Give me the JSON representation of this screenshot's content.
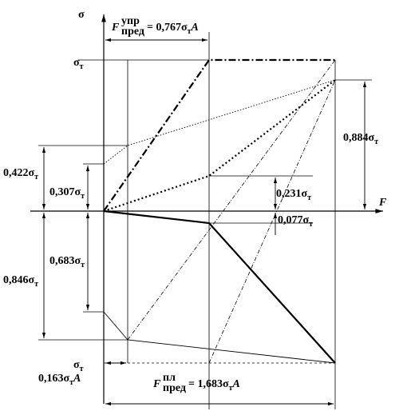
{
  "labels": {
    "sigma_axis": "σ",
    "f_axis": "F",
    "sigma_t_top": {
      "text": "σ",
      "sub": "т"
    },
    "sigma_t_bottom": {
      "text": "σ",
      "sub": "т"
    },
    "f_elastic": {
      "main": "F",
      "sup": "упр",
      "sub": "пред",
      "text": "= 0,767σ",
      "sub2": "т",
      "end": "A"
    },
    "f_plastic": {
      "main": "F",
      "sup": "пл",
      "sub": "пред",
      "text": "= 1,683σ",
      "sub2": "т",
      "end": "A"
    },
    "d_0884": {
      "text": "0,884σ",
      "sub": "т"
    },
    "d_0422": {
      "text": "0,422σ",
      "sub": "т"
    },
    "d_0307": {
      "text": "0,307σ",
      "sub": "т"
    },
    "d_0231": {
      "text": "0,231σ",
      "sub": "т"
    },
    "d_0077": {
      "text": "0,077σ",
      "sub": "т"
    },
    "d_0683": {
      "text": "0,683σ",
      "sub": "т"
    },
    "d_0846": {
      "text": "0,846σ",
      "sub": "т"
    },
    "d_0163": {
      "text": "0,163σ",
      "sub": "т",
      "end": "A"
    }
  }
}
